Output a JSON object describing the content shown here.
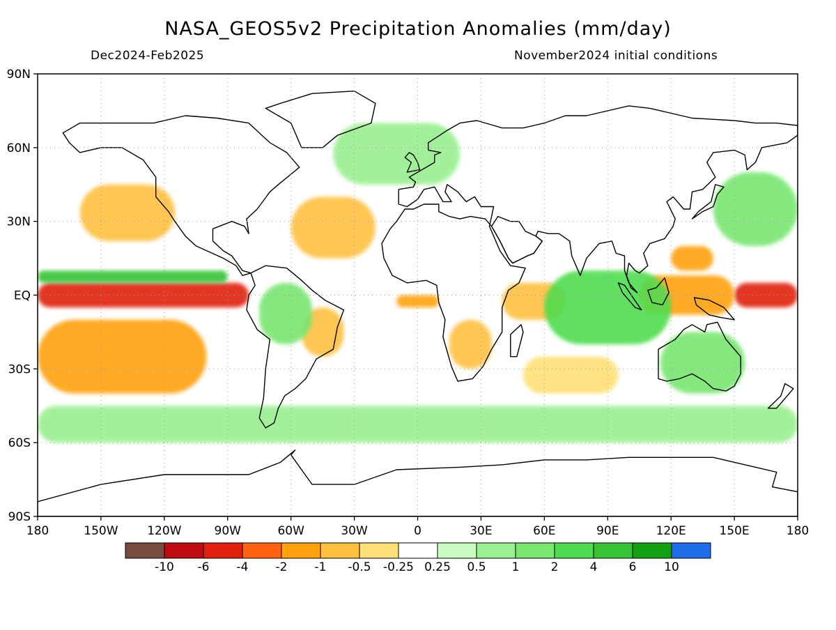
{
  "title": "NASA_GEOS5v2 Precipitation Anomalies (mm/day)",
  "subtitle_left": "Dec2024-Feb2025",
  "subtitle_right": "November2024 initial conditions",
  "map": {
    "projection": "equirectangular",
    "lon_range": [
      -180,
      180
    ],
    "lat_range": [
      -90,
      90
    ],
    "grid": true,
    "lat_ticks": [
      "90N",
      "60N",
      "30N",
      "EQ",
      "30S",
      "60S",
      "90S"
    ],
    "lon_ticks": [
      "180",
      "150W",
      "120W",
      "90W",
      "60W",
      "30W",
      "0",
      "30E",
      "60E",
      "90E",
      "120E",
      "150E",
      "180"
    ],
    "features": [
      {
        "name": "pacific-itcz-dry-band",
        "level": -6,
        "lon": [
          -180,
          -80
        ],
        "lat": [
          -5,
          5
        ]
      },
      {
        "name": "west-pacific-dry-band",
        "level": -6,
        "lon": [
          150,
          180
        ],
        "lat": [
          -5,
          5
        ]
      },
      {
        "name": "maritime-continent-dry",
        "level": -2,
        "lon": [
          105,
          150
        ],
        "lat": [
          -8,
          8
        ]
      },
      {
        "name": "philippines-dry",
        "level": -2,
        "lon": [
          120,
          140
        ],
        "lat": [
          10,
          20
        ]
      },
      {
        "name": "north-pacific-dry",
        "level": -1,
        "lon": [
          -160,
          -115
        ],
        "lat": [
          22,
          45
        ]
      },
      {
        "name": "south-pacific-dry-band",
        "level": -2,
        "lon": [
          -180,
          -100
        ],
        "lat": [
          -40,
          -10
        ]
      },
      {
        "name": "central-atlantic-dry",
        "level": -1,
        "lon": [
          -60,
          -20
        ],
        "lat": [
          15,
          40
        ]
      },
      {
        "name": "brazil-dry",
        "level": -1,
        "lon": [
          -55,
          -35
        ],
        "lat": [
          -25,
          -5
        ]
      },
      {
        "name": "equatorial-atlantic-dry",
        "level": -2,
        "lon": [
          -10,
          10
        ],
        "lat": [
          -5,
          0
        ]
      },
      {
        "name": "southern-africa-dry",
        "level": -1,
        "lon": [
          15,
          35
        ],
        "lat": [
          -30,
          -10
        ]
      },
      {
        "name": "western-indian-ocean-dry",
        "level": -1,
        "lon": [
          40,
          70
        ],
        "lat": [
          -10,
          5
        ]
      },
      {
        "name": "south-indian-ocean-dry",
        "level": -0.5,
        "lon": [
          50,
          95
        ],
        "lat": [
          -40,
          -25
        ]
      },
      {
        "name": "north-pacific-itcz-wet",
        "level": 4,
        "lon": [
          -180,
          -90
        ],
        "lat": [
          5,
          10
        ]
      },
      {
        "name": "indian-ocean-wet",
        "level": 2,
        "lon": [
          60,
          120
        ],
        "lat": [
          -20,
          10
        ]
      },
      {
        "name": "northwest-pacific-wet",
        "level": 1,
        "lon": [
          140,
          180
        ],
        "lat": [
          20,
          50
        ]
      },
      {
        "name": "south-america-wet",
        "level": 1,
        "lon": [
          -75,
          -50
        ],
        "lat": [
          -20,
          5
        ]
      },
      {
        "name": "australia-wet",
        "level": 1,
        "lon": [
          115,
          155
        ],
        "lat": [
          -40,
          -15
        ]
      },
      {
        "name": "southern-ocean-wet",
        "level": 0.5,
        "lon": [
          -180,
          180
        ],
        "lat": [
          -60,
          -45
        ]
      },
      {
        "name": "north-atlantic-wet",
        "level": 0.5,
        "lon": [
          -40,
          20
        ],
        "lat": [
          45,
          70
        ]
      }
    ]
  },
  "colorbar": {
    "colors": [
      "#774c3e",
      "#c20b10",
      "#e0210e",
      "#ff6310",
      "#ffa10b",
      "#ffc040",
      "#ffe076",
      "#ffffff",
      "#c8fcc0",
      "#98f090",
      "#78e66f",
      "#50dc50",
      "#36c436",
      "#12a012",
      "#1e6eeb"
    ],
    "labels": [
      "-10",
      "-6",
      "-4",
      "-2",
      "-1",
      "-0.5",
      "-0.25",
      "0.25",
      "0.5",
      "1",
      "2",
      "4",
      "6",
      "10"
    ]
  }
}
